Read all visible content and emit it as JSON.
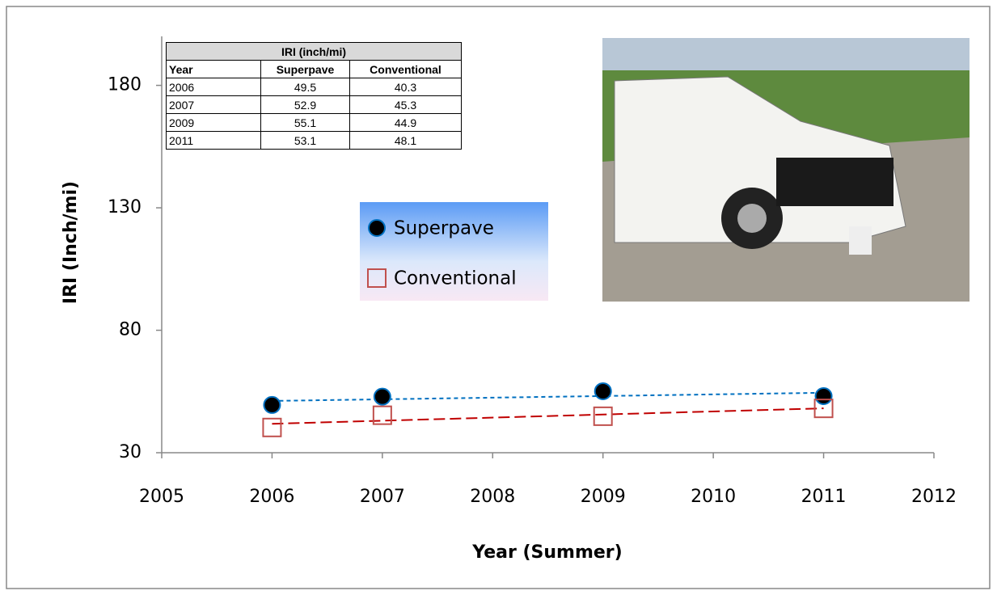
{
  "chart_data": {
    "type": "scatter",
    "x_label": "Year (Summer)",
    "y_label": "IRI (Inch/mi)",
    "x": [
      2006,
      2007,
      2009,
      2011
    ],
    "series": [
      {
        "name": "Superpave",
        "color": "#0070c0",
        "marker": "circle",
        "values": [
          49.5,
          52.9,
          55.1,
          53.1
        ]
      },
      {
        "name": "Conventional",
        "color": "#c0504d",
        "marker": "square",
        "values": [
          40.3,
          45.3,
          44.9,
          48.1
        ]
      }
    ],
    "trendline": "linear",
    "xlim": [
      2005,
      2012
    ],
    "xticks": [
      2005,
      2006,
      2007,
      2008,
      2009,
      2010,
      2011,
      2012
    ],
    "ylim": [
      30,
      200
    ],
    "yticks": [
      30,
      80,
      130,
      180
    ]
  },
  "table": {
    "title": "IRI (inch/mi)",
    "columns": [
      "Year",
      "Superpave",
      "Conventional"
    ],
    "rows": [
      [
        2006,
        49.5,
        40.3
      ],
      [
        2007,
        52.9,
        45.3
      ],
      [
        2009,
        55.1,
        44.9
      ],
      [
        2011,
        53.1,
        48.1
      ]
    ]
  }
}
